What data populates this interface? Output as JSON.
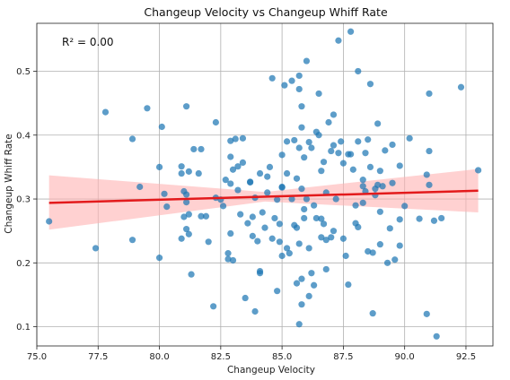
{
  "chart_data": {
    "type": "scatter",
    "title": "Changeup Velocity vs Changeup Whiff Rate",
    "xlabel": "Changeup Velocity",
    "ylabel": "Changeup Whiff Rate",
    "annotation": "R² = 0.00",
    "xlim": [
      75.0,
      93.6
    ],
    "ylim": [
      0.07,
      0.575
    ],
    "x_ticks": [
      "75.0",
      "77.5",
      "80.0",
      "82.5",
      "85.0",
      "87.5",
      "90.0",
      "92.5"
    ],
    "x_tick_values": [
      75.0,
      77.5,
      80.0,
      82.5,
      85.0,
      87.5,
      90.0,
      92.5
    ],
    "y_ticks": [
      "0.1",
      "0.2",
      "0.3",
      "0.4",
      "0.5"
    ],
    "y_tick_values": [
      0.1,
      0.2,
      0.3,
      0.4,
      0.5
    ],
    "grid": true,
    "colors": {
      "points": "#1f77b4",
      "regression": "#e31a1c",
      "confidence_band": "#ffb3b3"
    },
    "regression": {
      "x": [
        75.5,
        93.0
      ],
      "y": [
        0.294,
        0.313
      ]
    },
    "confidence_band": {
      "x": [
        75.5,
        84.3,
        93.0
      ],
      "lower": [
        0.252,
        0.296,
        0.279
      ],
      "upper": [
        0.337,
        0.311,
        0.347
      ]
    },
    "points": [
      [
        75.5,
        0.265
      ],
      [
        77.4,
        0.223
      ],
      [
        77.8,
        0.436
      ],
      [
        78.9,
        0.394
      ],
      [
        78.9,
        0.236
      ],
      [
        79.2,
        0.319
      ],
      [
        79.5,
        0.442
      ],
      [
        80.0,
        0.35
      ],
      [
        80.1,
        0.413
      ],
      [
        80.0,
        0.208
      ],
      [
        80.2,
        0.308
      ],
      [
        80.3,
        0.288
      ],
      [
        80.9,
        0.34
      ],
      [
        80.9,
        0.351
      ],
      [
        80.9,
        0.238
      ],
      [
        81.0,
        0.312
      ],
      [
        81.0,
        0.272
      ],
      [
        81.1,
        0.445
      ],
      [
        81.1,
        0.307
      ],
      [
        81.1,
        0.295
      ],
      [
        81.1,
        0.253
      ],
      [
        81.2,
        0.343
      ],
      [
        81.2,
        0.276
      ],
      [
        81.2,
        0.245
      ],
      [
        81.3,
        0.182
      ],
      [
        81.4,
        0.378
      ],
      [
        81.6,
        0.34
      ],
      [
        81.7,
        0.378
      ],
      [
        81.7,
        0.273
      ],
      [
        81.9,
        0.273
      ],
      [
        82.0,
        0.233
      ],
      [
        82.2,
        0.132
      ],
      [
        82.3,
        0.42
      ],
      [
        82.3,
        0.302
      ],
      [
        82.5,
        0.299
      ],
      [
        82.6,
        0.289
      ],
      [
        82.7,
        0.33
      ],
      [
        82.8,
        0.215
      ],
      [
        82.8,
        0.206
      ],
      [
        82.9,
        0.366
      ],
      [
        82.9,
        0.324
      ],
      [
        82.9,
        0.246
      ],
      [
        82.9,
        0.391
      ],
      [
        83.0,
        0.346
      ],
      [
        83.0,
        0.204
      ],
      [
        83.1,
        0.394
      ],
      [
        83.2,
        0.351
      ],
      [
        83.2,
        0.314
      ],
      [
        83.3,
        0.276
      ],
      [
        83.4,
        0.395
      ],
      [
        83.4,
        0.357
      ],
      [
        83.5,
        0.145
      ],
      [
        83.6,
        0.262
      ],
      [
        83.7,
        0.326
      ],
      [
        83.7,
        0.327
      ],
      [
        83.8,
        0.272
      ],
      [
        83.8,
        0.242
      ],
      [
        83.9,
        0.124
      ],
      [
        83.9,
        0.302
      ],
      [
        84.0,
        0.234
      ],
      [
        84.1,
        0.34
      ],
      [
        84.1,
        0.184
      ],
      [
        84.1,
        0.187
      ],
      [
        84.2,
        0.279
      ],
      [
        84.3,
        0.255
      ],
      [
        84.4,
        0.31
      ],
      [
        84.4,
        0.335
      ],
      [
        84.5,
        0.35
      ],
      [
        84.6,
        0.238
      ],
      [
        84.6,
        0.489
      ],
      [
        84.7,
        0.27
      ],
      [
        84.8,
        0.156
      ],
      [
        84.8,
        0.299
      ],
      [
        84.9,
        0.261
      ],
      [
        84.9,
        0.233
      ],
      [
        85.0,
        0.319
      ],
      [
        85.0,
        0.369
      ],
      [
        85.0,
        0.318
      ],
      [
        85.0,
        0.211
      ],
      [
        85.1,
        0.478
      ],
      [
        85.2,
        0.39
      ],
      [
        85.2,
        0.34
      ],
      [
        85.2,
        0.223
      ],
      [
        85.3,
        0.215
      ],
      [
        85.4,
        0.3
      ],
      [
        85.4,
        0.485
      ],
      [
        85.5,
        0.392
      ],
      [
        85.5,
        0.259
      ],
      [
        85.6,
        0.255
      ],
      [
        85.6,
        0.332
      ],
      [
        85.6,
        0.168
      ],
      [
        85.7,
        0.493
      ],
      [
        85.7,
        0.472
      ],
      [
        85.7,
        0.38
      ],
      [
        85.7,
        0.23
      ],
      [
        85.7,
        0.104
      ],
      [
        85.8,
        0.445
      ],
      [
        85.8,
        0.412
      ],
      [
        85.8,
        0.316
      ],
      [
        85.8,
        0.175
      ],
      [
        85.8,
        0.135
      ],
      [
        85.9,
        0.284
      ],
      [
        85.9,
        0.27
      ],
      [
        85.9,
        0.365
      ],
      [
        86.0,
        0.516
      ],
      [
        86.0,
        0.3
      ],
      [
        86.1,
        0.389
      ],
      [
        86.1,
        0.223
      ],
      [
        86.1,
        0.148
      ],
      [
        86.2,
        0.38
      ],
      [
        86.2,
        0.184
      ],
      [
        86.3,
        0.29
      ],
      [
        86.3,
        0.165
      ],
      [
        86.4,
        0.405
      ],
      [
        86.4,
        0.27
      ],
      [
        86.5,
        0.465
      ],
      [
        86.5,
        0.4
      ],
      [
        86.6,
        0.344
      ],
      [
        86.6,
        0.269
      ],
      [
        86.6,
        0.24
      ],
      [
        86.7,
        0.358
      ],
      [
        86.7,
        0.261
      ],
      [
        86.8,
        0.19
      ],
      [
        86.8,
        0.236
      ],
      [
        86.8,
        0.31
      ],
      [
        86.9,
        0.42
      ],
      [
        87.0,
        0.375
      ],
      [
        87.0,
        0.24
      ],
      [
        87.1,
        0.432
      ],
      [
        87.1,
        0.384
      ],
      [
        87.1,
        0.25
      ],
      [
        87.2,
        0.3
      ],
      [
        87.3,
        0.372
      ],
      [
        87.3,
        0.548
      ],
      [
        87.4,
        0.39
      ],
      [
        87.5,
        0.356
      ],
      [
        87.5,
        0.238
      ],
      [
        87.6,
        0.211
      ],
      [
        87.7,
        0.166
      ],
      [
        87.7,
        0.37
      ],
      [
        87.8,
        0.562
      ],
      [
        87.8,
        0.37
      ],
      [
        87.9,
        0.346
      ],
      [
        88.0,
        0.29
      ],
      [
        88.0,
        0.262
      ],
      [
        88.1,
        0.5
      ],
      [
        88.1,
        0.39
      ],
      [
        88.1,
        0.256
      ],
      [
        88.3,
        0.33
      ],
      [
        88.3,
        0.32
      ],
      [
        88.3,
        0.294
      ],
      [
        88.4,
        0.372
      ],
      [
        88.4,
        0.312
      ],
      [
        88.5,
        0.393
      ],
      [
        88.5,
        0.218
      ],
      [
        88.6,
        0.48
      ],
      [
        88.6,
        0.35
      ],
      [
        88.7,
        0.121
      ],
      [
        88.7,
        0.216
      ],
      [
        88.8,
        0.306
      ],
      [
        88.8,
        0.316
      ],
      [
        88.9,
        0.418
      ],
      [
        88.9,
        0.322
      ],
      [
        89.0,
        0.344
      ],
      [
        89.0,
        0.28
      ],
      [
        89.0,
        0.229
      ],
      [
        89.1,
        0.32
      ],
      [
        89.2,
        0.376
      ],
      [
        89.3,
        0.2
      ],
      [
        89.4,
        0.254
      ],
      [
        89.5,
        0.385
      ],
      [
        89.5,
        0.325
      ],
      [
        89.6,
        0.205
      ],
      [
        89.8,
        0.352
      ],
      [
        89.8,
        0.268
      ],
      [
        89.8,
        0.227
      ],
      [
        90.0,
        0.289
      ],
      [
        90.2,
        0.395
      ],
      [
        90.6,
        0.269
      ],
      [
        90.9,
        0.338
      ],
      [
        90.9,
        0.12
      ],
      [
        91.0,
        0.375
      ],
      [
        91.0,
        0.465
      ],
      [
        91.0,
        0.322
      ],
      [
        91.2,
        0.266
      ],
      [
        91.3,
        0.085
      ],
      [
        91.5,
        0.27
      ],
      [
        92.3,
        0.475
      ],
      [
        93.0,
        0.345
      ]
    ]
  }
}
